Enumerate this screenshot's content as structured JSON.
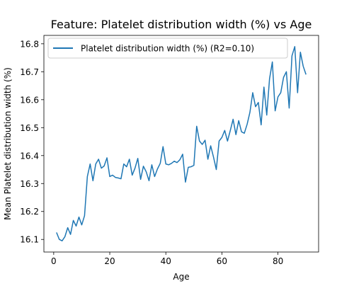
{
  "chart_data": {
    "type": "line",
    "title": "Feature: Platelet distribution width (%) vs Age",
    "xlabel": "Age",
    "ylabel": "Mean Platelet distribution width (%)",
    "xlim": [
      -3.5,
      94.5
    ],
    "ylim": [
      16.055,
      16.83
    ],
    "xticks": [
      0,
      20,
      40,
      60,
      80
    ],
    "yticks": [
      16.1,
      16.2,
      16.3,
      16.4,
      16.5,
      16.6,
      16.7,
      16.8
    ],
    "grid": false,
    "legend_position": "top-left",
    "series": [
      {
        "name": "Platelet distribution width (%) (R2=0.10)",
        "color": "#1f77b4",
        "x": [
          1,
          2,
          3,
          4,
          5,
          6,
          7,
          8,
          9,
          10,
          11,
          12,
          13,
          14,
          15,
          16,
          17,
          18,
          19,
          20,
          21,
          22,
          23,
          24,
          25,
          26,
          27,
          28,
          29,
          30,
          31,
          32,
          33,
          34,
          35,
          36,
          37,
          38,
          39,
          40,
          41,
          42,
          43,
          44,
          45,
          46,
          47,
          48,
          49,
          50,
          51,
          52,
          53,
          54,
          55,
          56,
          57,
          58,
          59,
          60,
          61,
          62,
          63,
          64,
          65,
          66,
          67,
          68,
          69,
          70,
          71,
          72,
          73,
          74,
          75,
          76,
          77,
          78,
          79,
          80,
          81,
          82,
          83,
          84,
          85,
          86,
          87,
          88,
          89,
          90
        ],
        "y": [
          16.125,
          16.1,
          16.095,
          16.11,
          16.142,
          16.118,
          16.168,
          16.148,
          16.18,
          16.152,
          16.185,
          16.325,
          16.37,
          16.31,
          16.37,
          16.387,
          16.355,
          16.363,
          16.392,
          16.325,
          16.33,
          16.322,
          16.32,
          16.317,
          16.37,
          16.36,
          16.387,
          16.33,
          16.355,
          16.39,
          16.315,
          16.362,
          16.342,
          16.31,
          16.367,
          16.325,
          16.352,
          16.372,
          16.432,
          16.37,
          16.367,
          16.372,
          16.38,
          16.375,
          16.385,
          16.405,
          16.305,
          16.358,
          16.36,
          16.365,
          16.505,
          16.452,
          16.44,
          16.455,
          16.387,
          16.435,
          16.395,
          16.35,
          16.452,
          16.465,
          16.49,
          16.452,
          16.49,
          16.53,
          16.475,
          16.525,
          16.485,
          16.48,
          16.512,
          16.555,
          16.625,
          16.575,
          16.59,
          16.51,
          16.645,
          16.545,
          16.675,
          16.735,
          16.56,
          16.61,
          16.625,
          16.68,
          16.7,
          16.57,
          16.757,
          16.79,
          16.625,
          16.77,
          16.72,
          16.69
        ]
      }
    ]
  }
}
